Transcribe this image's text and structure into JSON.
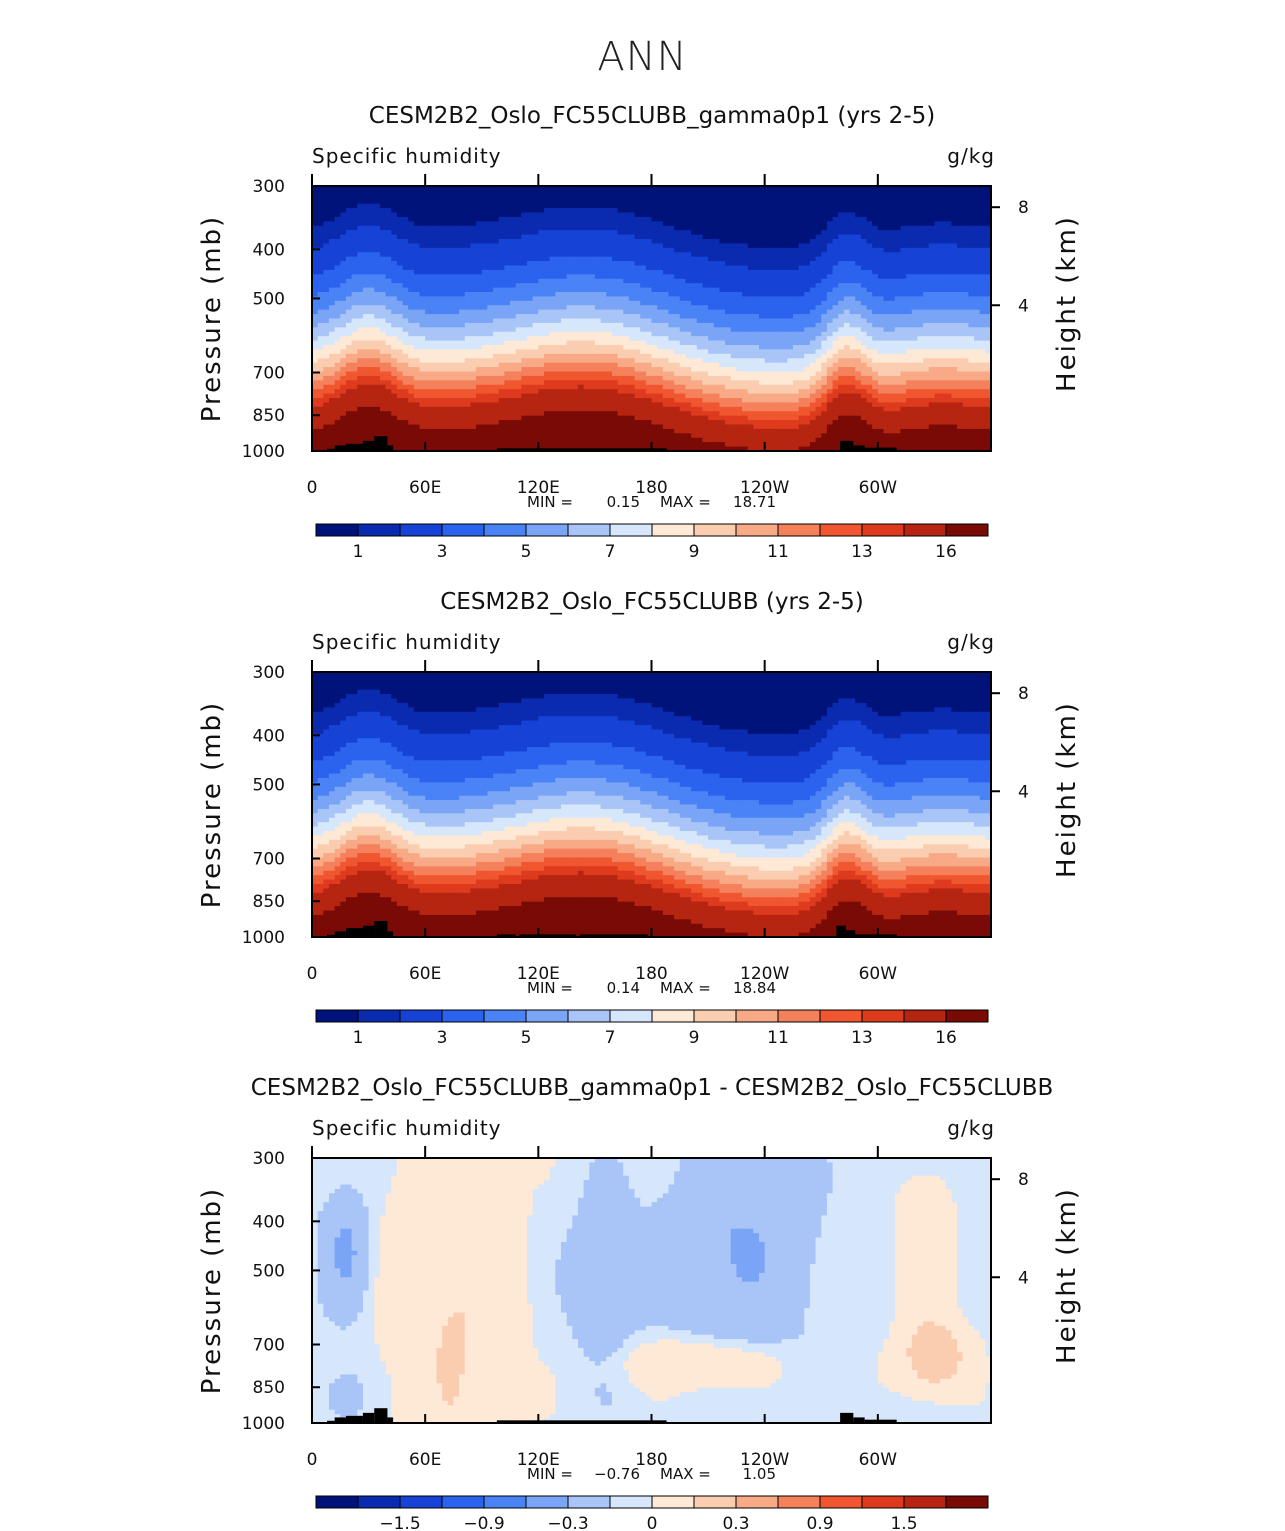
{
  "page": {
    "title": "ANN"
  },
  "palettes": {
    "abs": [
      "#00137a",
      "#0a2bb0",
      "#1643d6",
      "#2b63ee",
      "#4a83f5",
      "#7aa5f7",
      "#a9c5f8",
      "#d6e6fb",
      "#fde9d6",
      "#fbcdb0",
      "#f8a985",
      "#f5805c",
      "#f0562f",
      "#dd3a1e",
      "#b62511",
      "#7a0a05"
    ],
    "diff": [
      "#00137a",
      "#0a2bb0",
      "#1643d6",
      "#2b63ee",
      "#4a83f5",
      "#7aa5f7",
      "#a9c5f8",
      "#d6e6fb",
      "#fde9d6",
      "#fbcdb0",
      "#f8a985",
      "#f5805c",
      "#f0562f",
      "#dd3a1e",
      "#b62511",
      "#7a0a05"
    ]
  },
  "chart_data": [
    {
      "type": "heatmap",
      "title": "CESM2B2_Oslo_FC55CLUBB_gamma0p1 (yrs 2-5)",
      "left_label": "Specific humidity",
      "right_label": "g/kg",
      "ylabel": "Pressure (mb)",
      "y2label": "Height (km)",
      "x_ticks": [
        "0",
        "60E",
        "120E",
        "180",
        "120W",
        "60W"
      ],
      "y_ticks": [
        "300",
        "400",
        "500",
        "700",
        "850",
        "1000"
      ],
      "y2_ticks": [
        "8",
        "4"
      ],
      "min_label": "MIN =",
      "min_value": "0.15",
      "max_label": "MAX =",
      "max_value": "18.71",
      "colorbar_labels": [
        "1",
        "3",
        "5",
        "7",
        "9",
        "11",
        "13",
        "16"
      ],
      "palette": "abs",
      "field": "abs",
      "topography": "a"
    },
    {
      "type": "heatmap",
      "title": "CESM2B2_Oslo_FC55CLUBB (yrs 2-5)",
      "left_label": "Specific humidity",
      "right_label": "g/kg",
      "ylabel": "Pressure (mb)",
      "y2label": "Height (km)",
      "x_ticks": [
        "0",
        "60E",
        "120E",
        "180",
        "120W",
        "60W"
      ],
      "y_ticks": [
        "300",
        "400",
        "500",
        "700",
        "850",
        "1000"
      ],
      "y2_ticks": [
        "8",
        "4"
      ],
      "min_label": "MIN =",
      "min_value": "0.14",
      "max_label": "MAX =",
      "max_value": "18.84",
      "colorbar_labels": [
        "1",
        "3",
        "5",
        "7",
        "9",
        "11",
        "13",
        "16"
      ],
      "palette": "abs",
      "field": "abs",
      "topography": "b"
    },
    {
      "type": "heatmap",
      "title": "CESM2B2_Oslo_FC55CLUBB_gamma0p1 - CESM2B2_Oslo_FC55CLUBB",
      "left_label": "Specific humidity",
      "right_label": "g/kg",
      "ylabel": "Pressure (mb)",
      "y2label": "Height (km)",
      "x_ticks": [
        "0",
        "60E",
        "120E",
        "180",
        "120W",
        "60W"
      ],
      "y_ticks": [
        "300",
        "400",
        "500",
        "700",
        "850",
        "1000"
      ],
      "y2_ticks": [
        "8",
        "4"
      ],
      "min_label": "MIN =",
      "min_value": "−0.76",
      "max_label": "MAX =",
      "max_value": "1.05",
      "colorbar_labels": [
        "−1.5",
        "−0.9",
        "−0.3",
        "0",
        "0.3",
        "0.9",
        "1.5"
      ],
      "palette": "diff",
      "field": "diff",
      "topography": "a"
    }
  ]
}
